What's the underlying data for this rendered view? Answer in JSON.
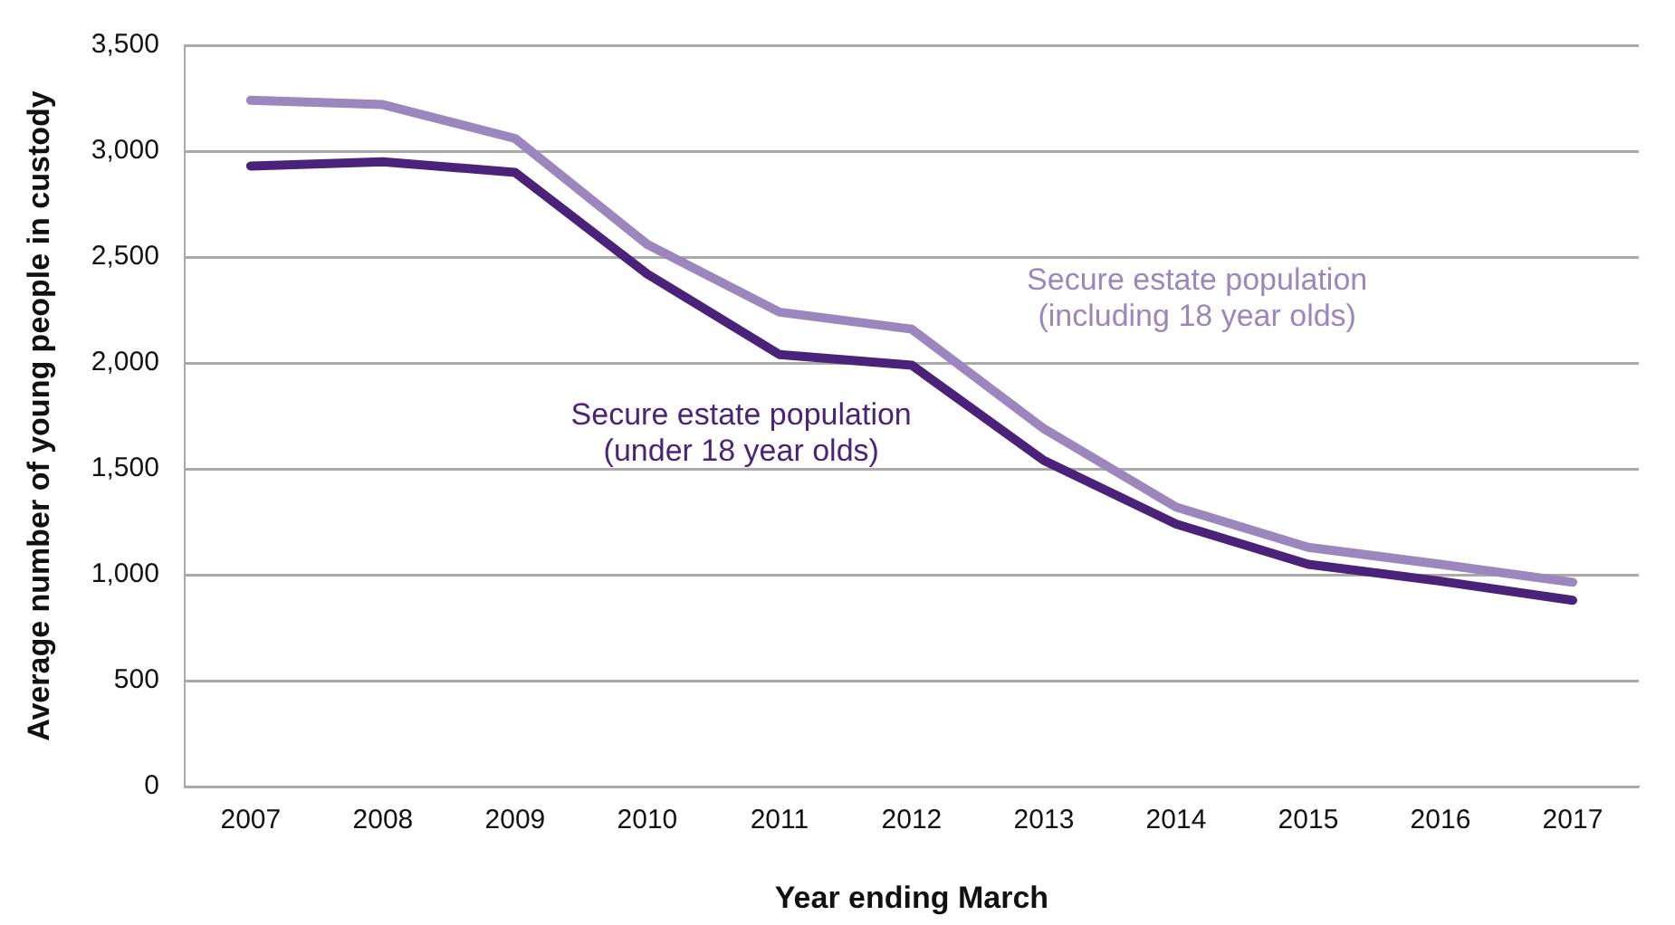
{
  "chart_data": {
    "type": "line",
    "xlabel": "Year ending March",
    "ylabel": "Average number of young people in custody",
    "categories": [
      "2007",
      "2008",
      "2009",
      "2010",
      "2011",
      "2012",
      "2013",
      "2014",
      "2015",
      "2016",
      "2017"
    ],
    "series": [
      {
        "name": "Secure estate population\n(including 18 year olds)",
        "color": "#9b86bd",
        "values": [
          3240,
          3220,
          3060,
          2560,
          2240,
          2160,
          1690,
          1320,
          1130,
          1050,
          965
        ]
      },
      {
        "name": "Secure estate population\n(under 18 year olds)",
        "color": "#4b2279",
        "values": [
          2930,
          2950,
          2900,
          2420,
          2040,
          1990,
          1540,
          1240,
          1050,
          970,
          880
        ]
      }
    ],
    "ylim": [
      0,
      3500
    ],
    "yticks": [
      0,
      500,
      {
        "value": 1000,
        "label": "1,000"
      },
      {
        "value": 1500,
        "label": "1,500"
      },
      {
        "value": 2000,
        "label": "2,000"
      },
      {
        "value": 2500,
        "label": "2,500"
      },
      {
        "value": 3000,
        "label": "3,000"
      },
      {
        "value": 3500,
        "label": "3,500"
      }
    ],
    "grid": "y",
    "legend": false,
    "marker": "none",
    "line_style": "solid"
  }
}
